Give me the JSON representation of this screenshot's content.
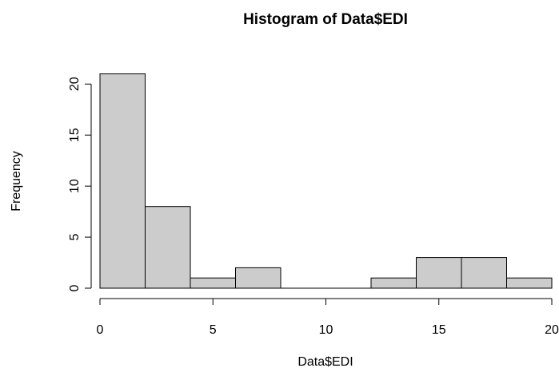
{
  "chart_data": {
    "type": "bar",
    "title": "Histogram of Data$EDI",
    "xlabel": "Data$EDI",
    "ylabel": "Frequency",
    "bins": [
      {
        "from": 0,
        "to": 2,
        "count": 21
      },
      {
        "from": 2,
        "to": 4,
        "count": 8
      },
      {
        "from": 4,
        "to": 6,
        "count": 1
      },
      {
        "from": 6,
        "to": 8,
        "count": 2
      },
      {
        "from": 8,
        "to": 10,
        "count": 0
      },
      {
        "from": 10,
        "to": 12,
        "count": 0
      },
      {
        "from": 12,
        "to": 14,
        "count": 1
      },
      {
        "from": 14,
        "to": 16,
        "count": 3
      },
      {
        "from": 16,
        "to": 18,
        "count": 3
      },
      {
        "from": 18,
        "to": 20,
        "count": 1
      }
    ],
    "xlim": [
      0,
      20
    ],
    "ylim": [
      0,
      21
    ],
    "x_ticks": [
      0,
      5,
      10,
      15,
      20
    ],
    "y_ticks": [
      0,
      5,
      10,
      15,
      20
    ],
    "x_tick_labels": [
      "0",
      "5",
      "10",
      "15",
      "20"
    ],
    "y_tick_labels": [
      "0",
      "5",
      "10",
      "15",
      "20"
    ],
    "grid": false,
    "bar_fill": "#cccccc",
    "bar_stroke": "#000000"
  }
}
